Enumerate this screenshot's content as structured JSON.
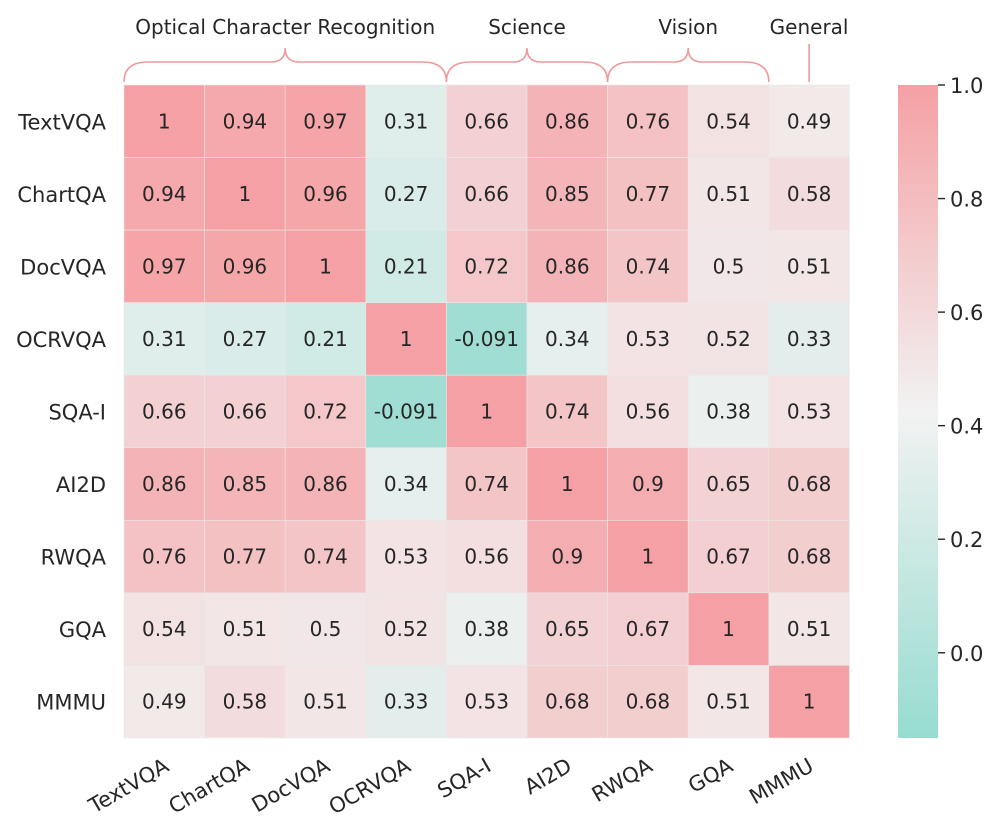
{
  "chart_data": {
    "type": "heatmap",
    "title": "",
    "xlabel": "",
    "ylabel": "",
    "labels": [
      "TextVQA",
      "ChartQA",
      "DocVQA",
      "OCRVQA",
      "SQA-I",
      "AI2D",
      "RWQA",
      "GQA",
      "MMMU"
    ],
    "matrix": [
      [
        1,
        0.94,
        0.97,
        0.31,
        0.66,
        0.86,
        0.76,
        0.54,
        0.49
      ],
      [
        0.94,
        1,
        0.96,
        0.27,
        0.66,
        0.85,
        0.77,
        0.51,
        0.58
      ],
      [
        0.97,
        0.96,
        1,
        0.21,
        0.72,
        0.86,
        0.74,
        0.5,
        0.51
      ],
      [
        0.31,
        0.27,
        0.21,
        1,
        -0.091,
        0.34,
        0.53,
        0.52,
        0.33
      ],
      [
        0.66,
        0.66,
        0.72,
        -0.091,
        1,
        0.74,
        0.56,
        0.38,
        0.53
      ],
      [
        0.86,
        0.85,
        0.86,
        0.34,
        0.74,
        1,
        0.9,
        0.65,
        0.68
      ],
      [
        0.76,
        0.77,
        0.74,
        0.53,
        0.56,
        0.9,
        1,
        0.67,
        0.68
      ],
      [
        0.54,
        0.51,
        0.5,
        0.52,
        0.38,
        0.65,
        0.67,
        1,
        0.51
      ],
      [
        0.49,
        0.58,
        0.51,
        0.33,
        0.53,
        0.68,
        0.68,
        0.51,
        1
      ]
    ],
    "groups": [
      {
        "name": "Optical Character Recognition",
        "start": 0,
        "end": 3
      },
      {
        "name": "Science",
        "start": 4,
        "end": 5
      },
      {
        "name": "Vision",
        "start": 6,
        "end": 7
      },
      {
        "name": "General",
        "start": 8,
        "end": 8
      }
    ],
    "colorbar": {
      "min": -0.15,
      "max": 1.0,
      "ticks": [
        "0.0",
        "0.2",
        "0.4",
        "0.6",
        "0.8",
        "1.0"
      ],
      "colors": [
        "#97DCD0",
        "#F2F2F2",
        "#F5A0A4"
      ],
      "center": 0.425
    },
    "bracket_color": "#EE9A9A"
  }
}
